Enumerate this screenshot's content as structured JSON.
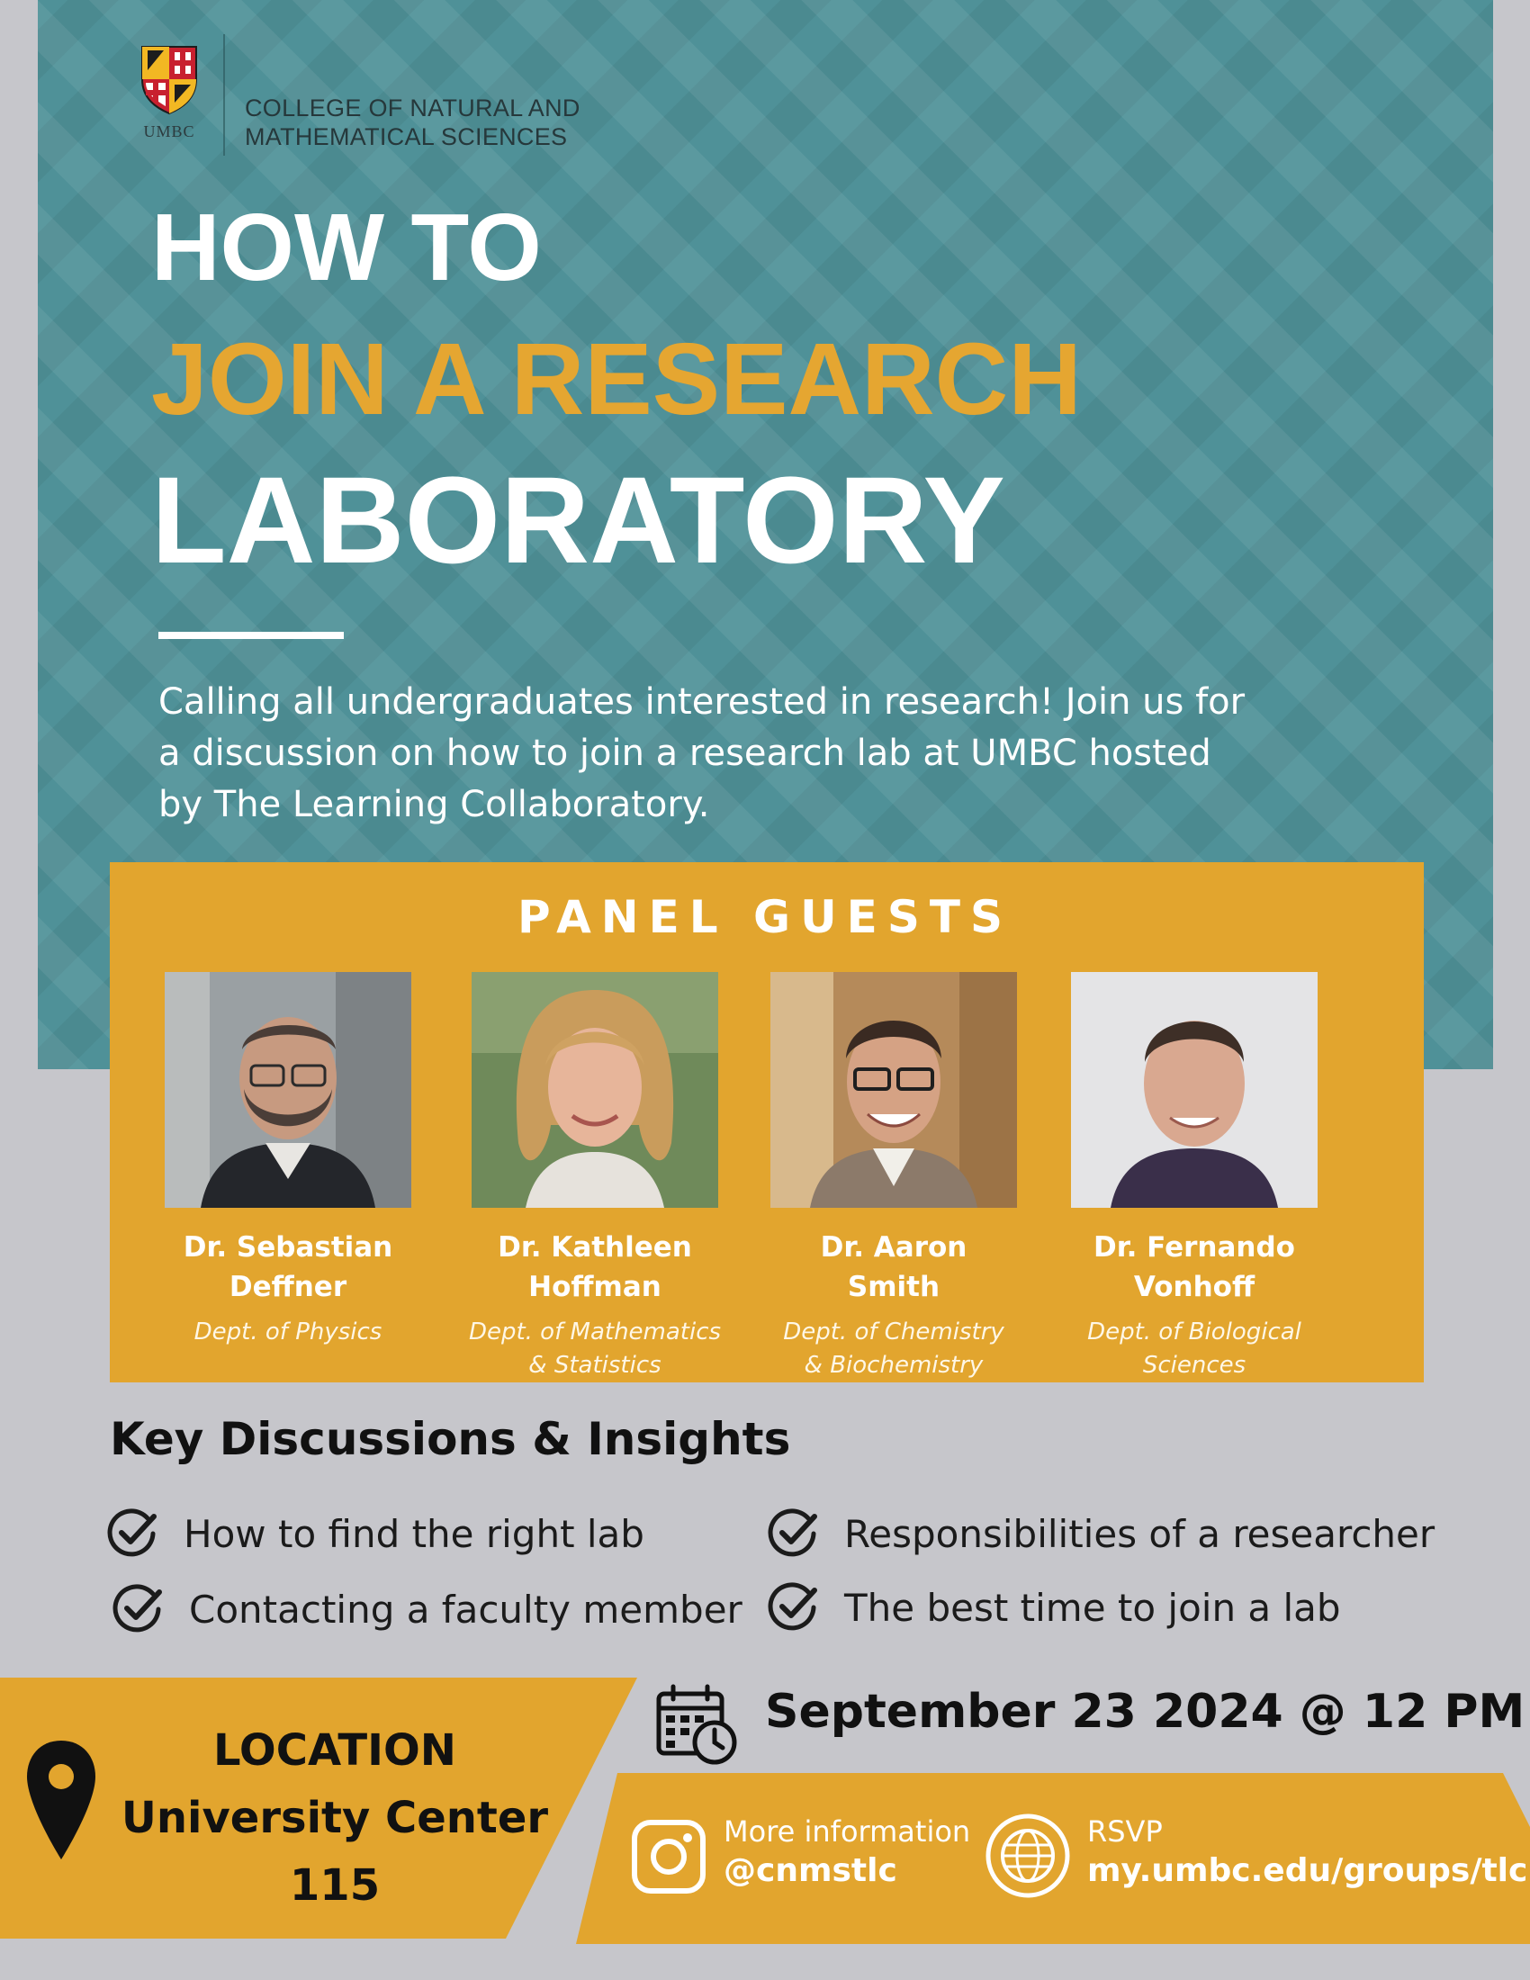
{
  "header": {
    "logo_text": "UMBC",
    "college": [
      "COLLEGE OF NATURAL AND",
      "MATHEMATICAL SCIENCES"
    ]
  },
  "title": {
    "line1": "HOW TO",
    "line2": "JOIN A RESEARCH",
    "line3": "LABORATORY"
  },
  "intro": "Calling all undergraduates interested in research! Join us for a discussion on how to join a research lab at UMBC hosted by The Learning Collaboratory.",
  "panel": {
    "title": "PANEL GUESTS",
    "guests": [
      {
        "name1": "Dr. Sebastian",
        "name2": "Deffner",
        "dept1": "Dept. of Physics",
        "dept2": ""
      },
      {
        "name1": "Dr. Kathleen",
        "name2": "Hoffman",
        "dept1": "Dept. of Mathematics",
        "dept2": "& Statistics"
      },
      {
        "name1": "Dr. Aaron",
        "name2": "Smith",
        "dept1": "Dept. of Chemistry",
        "dept2": "& Biochemistry"
      },
      {
        "name1": "Dr. Fernando",
        "name2": "Vonhoff",
        "dept1": "Dept. of Biological",
        "dept2": "Sciences"
      }
    ]
  },
  "discussions": {
    "title": "Key Discussions & Insights",
    "items": [
      "How to find the right lab",
      "Contacting a faculty member",
      "Responsibilities of a researcher",
      "The best time to join a lab"
    ]
  },
  "location": {
    "label": "LOCATION",
    "place": "University Center",
    "room": "115"
  },
  "event": {
    "datetime": "September 23 2024 @ 12 PM"
  },
  "more_info": {
    "label": "More information",
    "handle": "@cnmstlc"
  },
  "rsvp": {
    "label": "RSVP",
    "url": "my.umbc.edu/groups/tlc"
  },
  "colors": {
    "teal": "#4f9198",
    "gold": "#e2a52e",
    "background": "#c6c6cb"
  }
}
